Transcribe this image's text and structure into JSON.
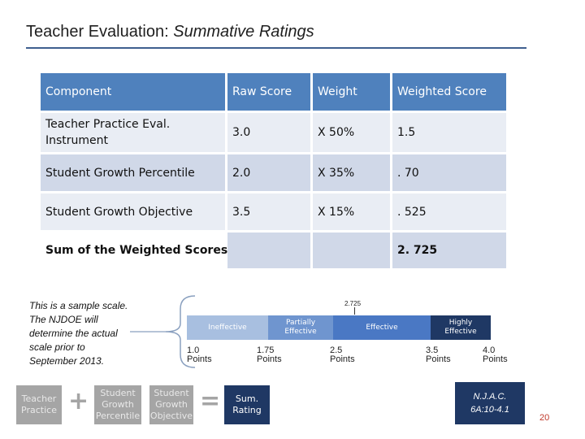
{
  "title": {
    "main": "Teacher Evaluation: ",
    "italic": "Summative Ratings"
  },
  "table": {
    "headers": [
      "Component",
      "Raw Score",
      "Weight",
      "Weighted Score"
    ],
    "rows": [
      [
        "Teacher Practice Eval. Instrument",
        "3.0",
        "X 50%",
        "1.5"
      ],
      [
        "Student Growth Percentile",
        "2.0",
        "X 35%",
        ". 70"
      ],
      [
        "Student Growth Objective",
        "3.5",
        "X 15%",
        ". 525"
      ]
    ],
    "sum_label": "Sum of the Weighted Scores",
    "sum_value": "2. 725"
  },
  "note": "This is a sample scale.  The NJDOE will determine the actual scale prior to September 2013.",
  "scale": {
    "marker": "2.725",
    "segments": [
      "Ineffective",
      "Partially Effective",
      "Effective",
      "Highly Effective"
    ],
    "points": [
      {
        "value": "1.0",
        "unit": "Points"
      },
      {
        "value": "1.75",
        "unit": "Points"
      },
      {
        "value": "2.5",
        "unit": "Points"
      },
      {
        "value": "3.5",
        "unit": "Points"
      },
      {
        "value": "4.0",
        "unit": "Points"
      }
    ]
  },
  "equation": {
    "teacher_practice": "Teacher Practice",
    "plus": "+",
    "sgp": "Student Growth Percentile",
    "sgo": "Student Growth Objective",
    "equals": "=",
    "result": "Sum. Rating"
  },
  "citation": {
    "line1": "N.J.A.C.",
    "line2": "6A:10-4.1"
  },
  "page_number": "20",
  "colors": {
    "header_blue": "#4f81bd",
    "ineffective": "#a8bfe0",
    "partially_effective": "#6f95cf",
    "effective": "#4a78c4",
    "highly_effective": "#1f3864",
    "gray_step": "#a5a5a5"
  }
}
